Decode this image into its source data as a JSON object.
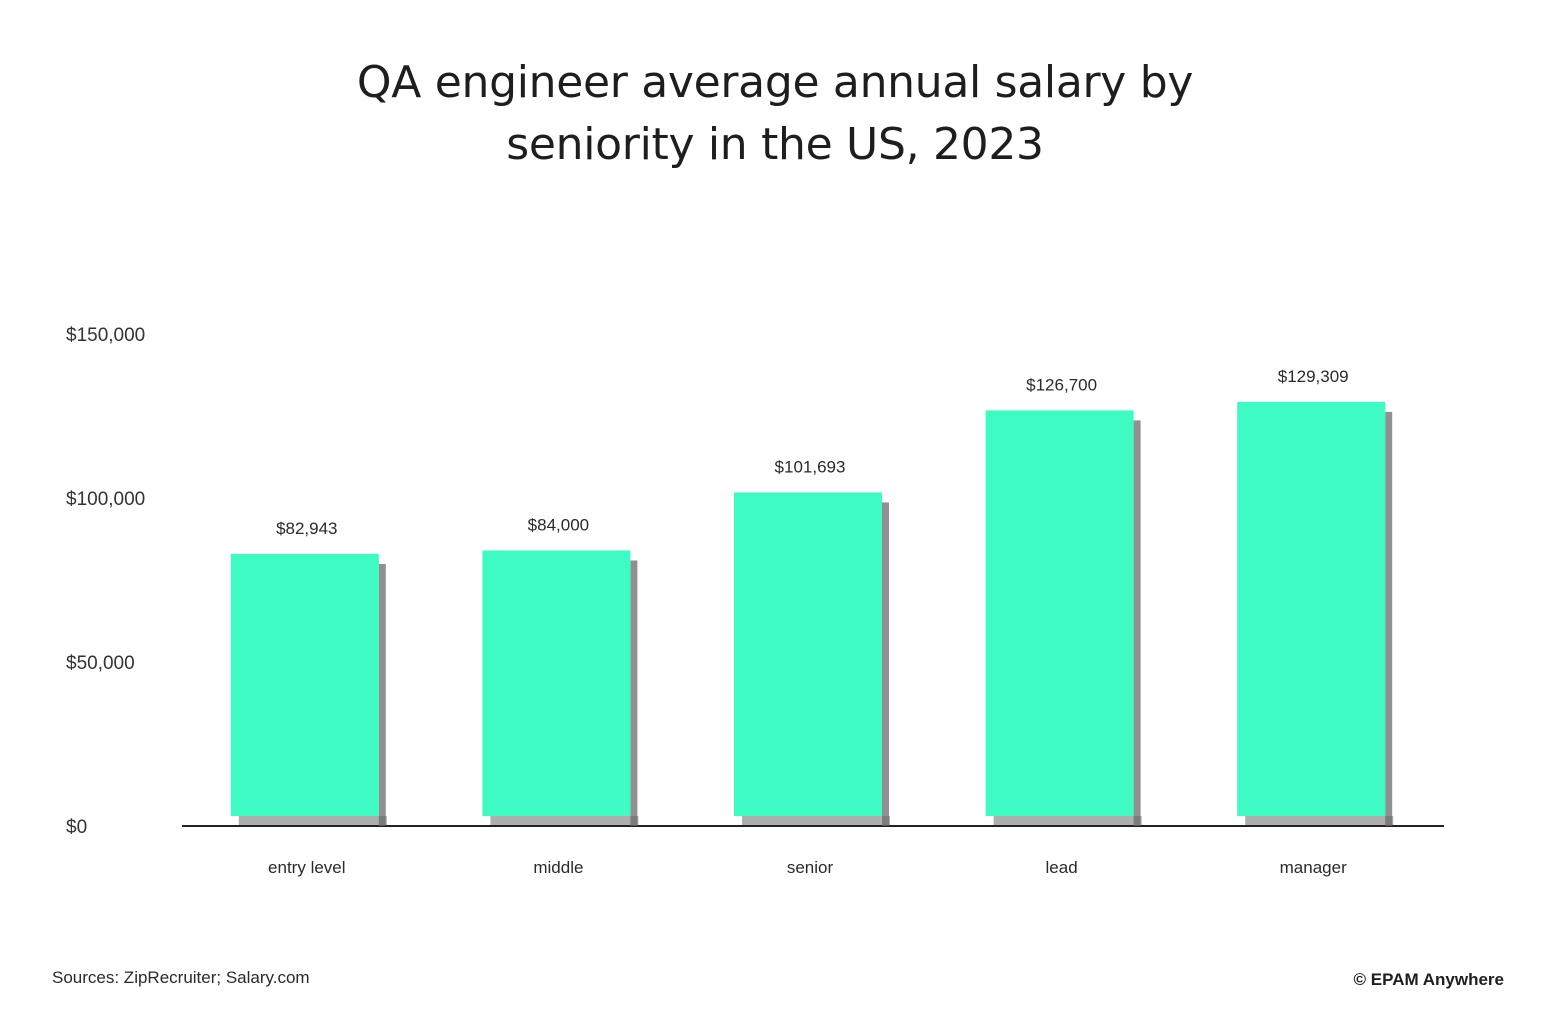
{
  "chart_data": {
    "type": "bar",
    "title_lines": [
      "QA engineer average annual salary by",
      "seniority in the US, 2023"
    ],
    "categories": [
      "entry level",
      "middle",
      "senior",
      "lead",
      "manager"
    ],
    "values": [
      82943,
      84000,
      101693,
      126700,
      129309
    ],
    "value_labels": [
      "$82,943",
      "$84,000",
      "$101,693",
      "$126,700",
      "$129,309"
    ],
    "y_ticks": [
      {
        "value": 0,
        "label": "$0"
      },
      {
        "value": 50000,
        "label": "$50,000"
      },
      {
        "value": 100000,
        "label": "$100,000"
      },
      {
        "value": 150000,
        "label": "$150,000"
      }
    ],
    "ylim": [
      0,
      150000
    ],
    "xlabel": "",
    "ylabel": "",
    "grid": false,
    "bar_color": "#3dfbc3",
    "shadow_color": "#6b6b6b",
    "axis_color": "#222222"
  },
  "footer": {
    "source": "Sources: ZipRecruiter; Salary.com",
    "brand": "© EPAM Anywhere"
  }
}
